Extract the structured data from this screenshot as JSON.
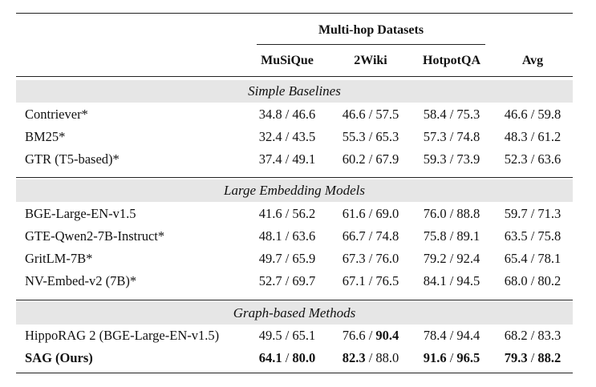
{
  "header": {
    "group_label": "Multi-hop Datasets",
    "columns": [
      "MuSiQue",
      "2Wiki",
      "HotpotQA",
      "Avg"
    ]
  },
  "sections": [
    {
      "title": "Simple Baselines",
      "rows": [
        {
          "method": "Contriever*",
          "musique": "34.8 / 46.6",
          "wiki2": "46.6 / 57.5",
          "hotpotqa": "58.4 / 75.3",
          "avg": "46.6 / 59.8"
        },
        {
          "method": "BM25*",
          "musique": "32.4 / 43.5",
          "wiki2": "55.3 / 65.3",
          "hotpotqa": "57.3 / 74.8",
          "avg": "48.3 / 61.2"
        },
        {
          "method": "GTR (T5-based)*",
          "musique": "37.4 / 49.1",
          "wiki2": "60.2 / 67.9",
          "hotpotqa": "59.3 / 73.9",
          "avg": "52.3 / 63.6"
        }
      ]
    },
    {
      "title": "Large Embedding Models",
      "rows": [
        {
          "method": "BGE-Large-EN-v1.5",
          "musique": "41.6 / 56.2",
          "wiki2": "61.6 / 69.0",
          "hotpotqa": "76.0 / 88.8",
          "avg": "59.7 / 71.3"
        },
        {
          "method": "GTE-Qwen2-7B-Instruct*",
          "musique": "48.1 / 63.6",
          "wiki2": "66.7 / 74.8",
          "hotpotqa": "75.8 / 89.1",
          "avg": "63.5 / 75.8"
        },
        {
          "method": "GritLM-7B*",
          "musique": "49.7 / 65.9",
          "wiki2": "67.3 / 76.0",
          "hotpotqa": "79.2 / 92.4",
          "avg": "65.4 / 78.1"
        },
        {
          "method": "NV-Embed-v2 (7B)*",
          "musique": "52.7 / 69.7",
          "wiki2": "67.1 / 76.5",
          "hotpotqa": "84.1 / 94.5",
          "avg": "68.0 / 80.2"
        }
      ]
    },
    {
      "title": "Graph-based Methods",
      "rows": [
        {
          "method": "HippoRAG 2 (BGE-Large-EN-v1.5)",
          "musique": "49.5 / 65.1",
          "wiki2_a": "76.6",
          "wiki2_b": "90.4",
          "hotpotqa": "78.4 / 94.4",
          "avg": "68.2 / 83.3"
        },
        {
          "method": "SAG (Ours)",
          "musique_a": "64.1",
          "musique_b": "80.0",
          "wiki2_a": "82.3",
          "wiki2_b": "88.0",
          "hotpotqa_a": "91.6",
          "hotpotqa_b": "96.5",
          "avg_a": "79.3",
          "avg_b": "88.2"
        }
      ]
    }
  ]
}
